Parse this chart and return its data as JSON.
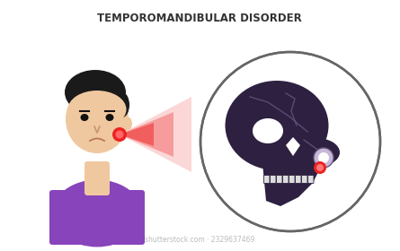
{
  "title": "TEMPOROMANDIBULAR DISORDER",
  "title_fontsize": 8.5,
  "title_color": "#333333",
  "bg_color": "#ffffff",
  "watermark": "shutterstock.com · 2329637469",
  "skin_color": "#f0c8a0",
  "hair_color": "#1a1a1a",
  "shirt_color": "#8844bb",
  "skull_color": "#2d2040",
  "skull_line_color": "#6a5580",
  "pain_red": "#ee2222",
  "circle_color": "#666666",
  "tooth_color": "#dddddd"
}
